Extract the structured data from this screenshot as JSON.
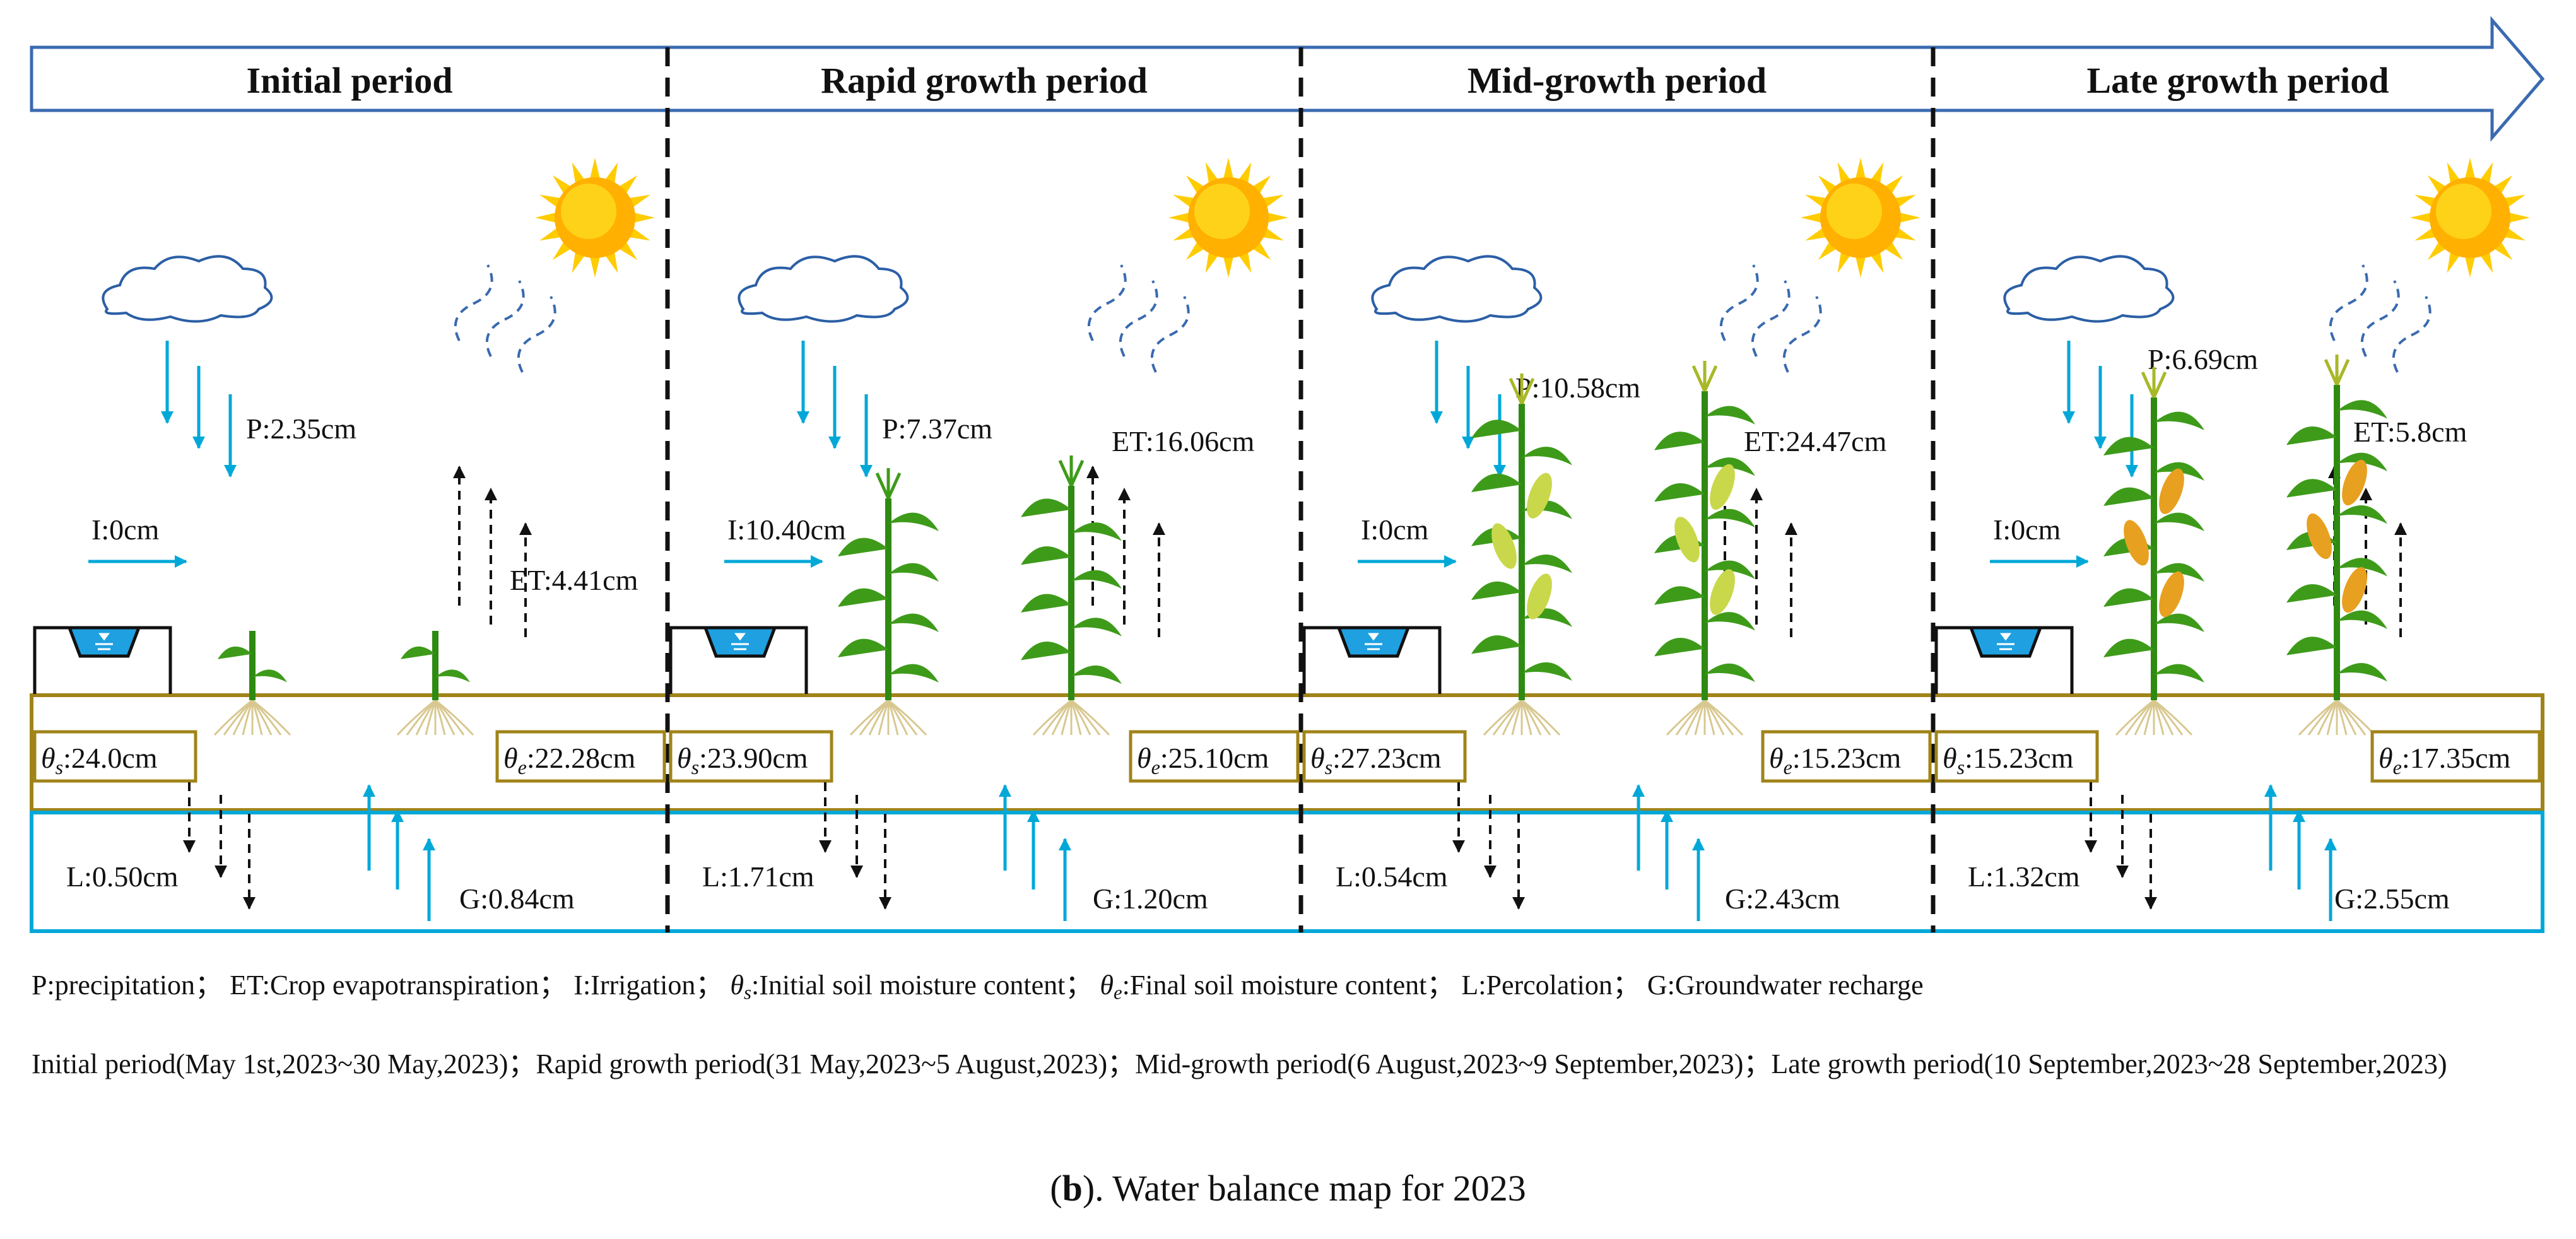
{
  "periods": [
    {
      "name": "Initial period",
      "precip": "P:2.35cm",
      "et": "ET:4.41cm",
      "irrig": "I:0cm",
      "theta_s": ":24.0cm",
      "theta_e": ":22.28cm",
      "perc": "L:0.50cm",
      "gw": "G:0.84cm"
    },
    {
      "name": "Rapid growth period",
      "precip": "P:7.37cm",
      "et": "ET:16.06cm",
      "irrig": "I:10.40cm",
      "theta_s": ":23.90cm",
      "theta_e": ":25.10cm",
      "perc": "L:1.71cm",
      "gw": "G:1.20cm"
    },
    {
      "name": "Mid-growth period",
      "precip": "P:10.58cm",
      "et": "ET:24.47cm",
      "irrig": "I:0cm",
      "theta_s": ":27.23cm",
      "theta_e": ":15.23cm",
      "perc": "L:0.54cm",
      "gw": "G:2.43cm"
    },
    {
      "name": "Late growth period",
      "precip": "P:6.69cm",
      "et": "ET:5.8cm",
      "irrig": "I:0cm",
      "theta_s": ":15.23cm",
      "theta_e": ":17.35cm",
      "perc": "L:1.32cm",
      "gw": "G:2.55cm"
    }
  ],
  "theta_symbol": "θ",
  "theta_s_sub": "s",
  "theta_e_sub": "e",
  "legend": {
    "p": "P:precipitation；",
    "et": "ET:Crop evapotranspiration；",
    "i": "I:Irrigation；",
    "ts": ":Initial soil moisture content；",
    "te": ":Final soil moisture content；",
    "l": "L:Percolation；",
    "g": "G:Groundwater recharge"
  },
  "period_dates": "Initial period(May 1st,2023~30 May,2023)；Rapid growth period(31 May,2023~5 August,2023)；Mid-growth period(6 August,2023~9 September,2023)；Late growth period(10 September,2023~28 September,2023)",
  "caption_letter": "b",
  "caption_text": "). Water balance map for 2023",
  "colors": {
    "water": "#00a8d8",
    "soil": "#a08418",
    "frame": "#3a6ab0",
    "sun": "#ffb000",
    "cloud": "#2b5fa6",
    "plant": "#3e9b1a",
    "tassel": "#e8a020"
  }
}
